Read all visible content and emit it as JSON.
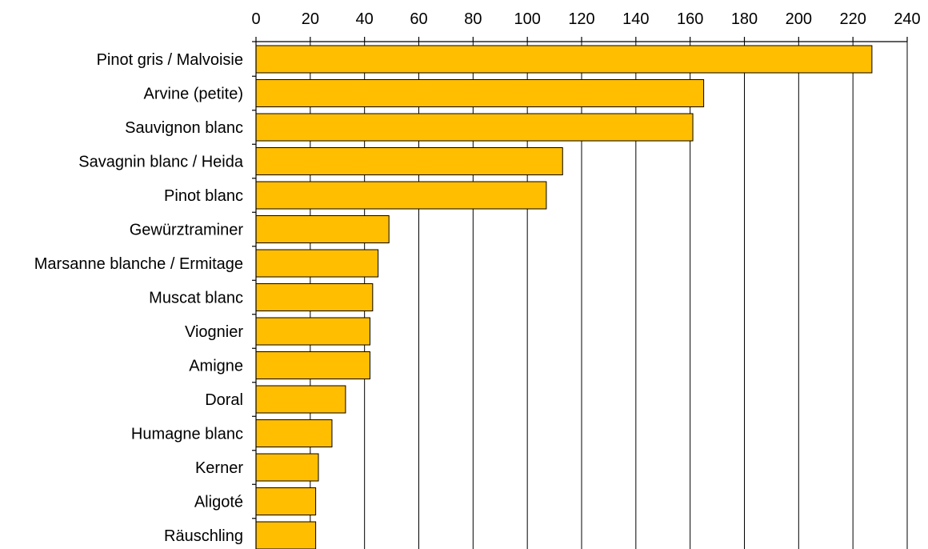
{
  "chart_data": {
    "type": "bar",
    "orientation": "horizontal",
    "title": "",
    "xlabel": "",
    "ylabel": "",
    "xlim": [
      0,
      240
    ],
    "x_ticks": [
      "0",
      "20",
      "40",
      "60",
      "80",
      "100",
      "120",
      "140",
      "160",
      "180",
      "200",
      "220",
      "240"
    ],
    "x_axis_position": "top",
    "grid": true,
    "bar_color": "#FFBE00",
    "categories": [
      "Pinot gris / Malvoisie",
      "Arvine (petite)",
      "Sauvignon blanc",
      "Savagnin blanc / Heida",
      "Pinot blanc",
      "Gewürztraminer",
      "Marsanne blanche / Ermitage",
      "Muscat blanc",
      "Viognier",
      "Amigne",
      "Doral",
      "Humagne blanc",
      "Kerner",
      "Aligoté",
      "Räuschling"
    ],
    "values": [
      227,
      165,
      161,
      113,
      107,
      49,
      45,
      43,
      42,
      42,
      33,
      28,
      23,
      22,
      22
    ]
  }
}
